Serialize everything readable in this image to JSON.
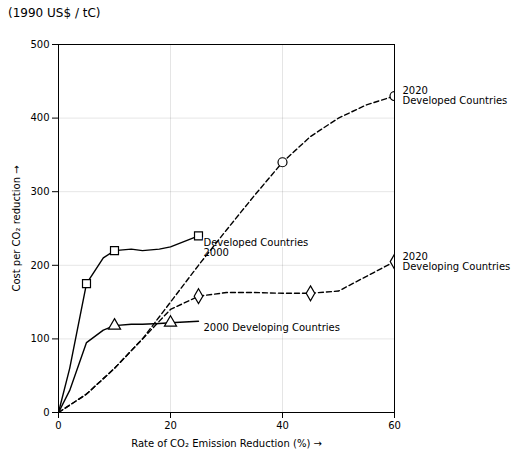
{
  "chart_data": {
    "type": "line",
    "title": "(1990 US$ / tC)",
    "x_label": "Rate of CO₂ Emission Reduction (%)",
    "y_label": "Cost per CO₂ reduction",
    "xlim": [
      0,
      60
    ],
    "ylim": [
      0,
      500
    ],
    "xticks": [
      0,
      20,
      40,
      60
    ],
    "yticks": [
      0,
      100,
      200,
      300,
      400,
      500
    ],
    "grid": true,
    "series": [
      {
        "name": "Developed Countries\n2000",
        "color": "#000000",
        "line_style": "solid",
        "marker": "square",
        "x": [
          0,
          2,
          5,
          8,
          10,
          13,
          15,
          18,
          20,
          25
        ],
        "values": [
          0,
          60,
          175,
          210,
          220,
          222,
          220,
          222,
          225,
          240
        ],
        "marker_x": [
          5,
          10,
          25
        ],
        "marker_values": [
          175,
          220,
          240
        ]
      },
      {
        "name": "2020\nDeveloped Countries",
        "color": "#000000",
        "line_style": "dashed",
        "marker": "circle",
        "x": [
          0,
          5,
          10,
          15,
          20,
          25,
          30,
          35,
          40,
          45,
          50,
          55,
          60
        ],
        "values": [
          0,
          25,
          60,
          100,
          150,
          200,
          248,
          295,
          340,
          375,
          400,
          418,
          430
        ],
        "marker_x": [
          40,
          60
        ],
        "marker_values": [
          340,
          430
        ]
      },
      {
        "name": "2000 Developing Countries",
        "color": "#000000",
        "line_style": "solid",
        "marker": "triangle",
        "x": [
          0,
          2,
          5,
          8,
          10,
          13,
          15,
          18,
          20,
          25
        ],
        "values": [
          0,
          30,
          95,
          112,
          118,
          120,
          120,
          121,
          122,
          124
        ],
        "marker_x": [
          10,
          20
        ],
        "marker_values": [
          118,
          122
        ]
      },
      {
        "name": "2020\nDeveloping Countries",
        "color": "#000000",
        "line_style": "dashed",
        "marker": "diamond",
        "x": [
          0,
          5,
          10,
          15,
          20,
          25,
          30,
          35,
          40,
          45,
          50,
          55,
          60
        ],
        "values": [
          0,
          25,
          60,
          100,
          140,
          158,
          163,
          163,
          162,
          162,
          165,
          185,
          205
        ],
        "marker_x": [
          25,
          45,
          60
        ],
        "marker_values": [
          158,
          162,
          205
        ]
      }
    ]
  }
}
